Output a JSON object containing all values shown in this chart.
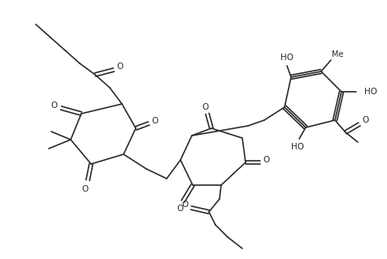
{
  "line_color": "#2a2a2a",
  "bg_color": "#ffffff",
  "lw": 1.2,
  "fs": 7.5,
  "figsize": [
    4.77,
    3.19
  ],
  "dpi": 100,
  "atoms": {
    "HO": "HO",
    "O": "O",
    "Me": "Me"
  }
}
